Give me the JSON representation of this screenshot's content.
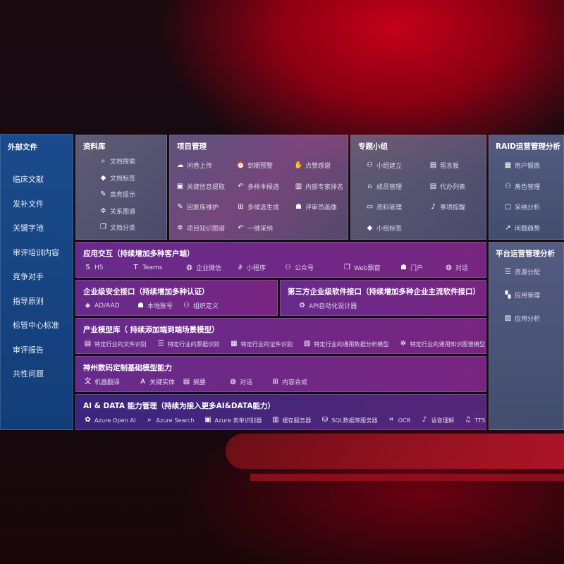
{
  "sidebar": {
    "title": "外部文件",
    "items": [
      "临床文献",
      "发补文件",
      "关键字池",
      "审评培训内容",
      "竞争对手",
      "指导原则",
      "标管中心标准",
      "审评报告",
      "共性问题"
    ]
  },
  "library": {
    "title": "资料库",
    "items": [
      {
        "icon": "doc-search",
        "label": "文档搜索"
      },
      {
        "icon": "tag",
        "label": "文档标签"
      },
      {
        "icon": "pen",
        "label": "高亮提示"
      },
      {
        "icon": "graph",
        "label": "关系图谱"
      },
      {
        "icon": "doc-stack",
        "label": "文档分类"
      }
    ]
  },
  "project": {
    "title": "项目管理",
    "items": [
      {
        "icon": "cloud-upload",
        "label": "问卷上传"
      },
      {
        "icon": "alarm",
        "label": "到期预警"
      },
      {
        "icon": "thumbs-up",
        "label": "点赞感谢"
      },
      {
        "icon": "extract",
        "label": "关键信息提取"
      },
      {
        "icon": "reply",
        "label": "多样本候选"
      },
      {
        "icon": "ranking",
        "label": "内部专家排名"
      },
      {
        "icon": "edit",
        "label": "回复库维护"
      },
      {
        "icon": "puzzle",
        "label": "多候选生成"
      },
      {
        "icon": "user",
        "label": "评审员画像"
      },
      {
        "icon": "graph",
        "label": "项目知识图谱"
      },
      {
        "icon": "reply",
        "label": "一键采纳"
      }
    ]
  },
  "group": {
    "title": "专题小组",
    "items": [
      {
        "icon": "users",
        "label": "小组建立"
      },
      {
        "icon": "bbs",
        "label": "留言板"
      },
      {
        "icon": "user-add",
        "label": "成员管理"
      },
      {
        "icon": "clipboard",
        "label": "代办列表"
      },
      {
        "icon": "folder",
        "label": "资料管理"
      },
      {
        "icon": "bell",
        "label": "事项提醒"
      },
      {
        "icon": "tag",
        "label": "小组标签"
      }
    ]
  },
  "raid": {
    "title": "RAID运营管理分析",
    "items": [
      {
        "icon": "id-card",
        "label": "用户锻炼"
      },
      {
        "icon": "users",
        "label": "角色管理"
      },
      {
        "icon": "qa",
        "label": "采纳分析"
      },
      {
        "icon": "trend",
        "label": "问题趋势"
      }
    ]
  },
  "platform": {
    "title": "平台运营管理分析",
    "items": [
      {
        "icon": "list",
        "label": "资源分配"
      },
      {
        "icon": "apps",
        "label": "应用管理"
      },
      {
        "icon": "analytics",
        "label": "应用分析"
      }
    ]
  },
  "interaction": {
    "title": "应用交互（持续增加多种客户端）",
    "items": [
      {
        "icon": "html5",
        "label": "H5"
      },
      {
        "icon": "teams",
        "label": "Teams"
      },
      {
        "icon": "wechat",
        "label": "企业微信"
      },
      {
        "icon": "mini-program",
        "label": "小程序"
      },
      {
        "icon": "official-account",
        "label": "公众号"
      },
      {
        "icon": "window",
        "label": "Web飘窗"
      },
      {
        "icon": "portal",
        "label": "门户"
      },
      {
        "icon": "chat",
        "label": "对话"
      }
    ]
  },
  "security": {
    "title": "企业级安全接口（持续增加多种认证）",
    "items": [
      {
        "icon": "ad",
        "label": "AD/AAD"
      },
      {
        "icon": "local-account",
        "label": "本地账号"
      },
      {
        "icon": "org",
        "label": "组织定义"
      }
    ]
  },
  "thirdparty": {
    "title": "第三方企业级软件接口（持续增加多种企业主流软件接口）",
    "items": [
      {
        "icon": "gear",
        "label": "API自动化设计器"
      }
    ]
  },
  "industry": {
    "title": "产业模型库（ 持续添加端到端场景模型）",
    "items": [
      {
        "icon": "doc",
        "label": "特定行业的文件识别"
      },
      {
        "icon": "receipt",
        "label": "特定行业的票据识别"
      },
      {
        "icon": "id-card",
        "label": "特定行业的证件识别"
      },
      {
        "icon": "chart",
        "label": "特定行业的通用数据分析模型"
      },
      {
        "icon": "graph",
        "label": "特定行业的通用知识图谱模型"
      }
    ]
  },
  "foundation": {
    "title": "神州数码定制基础模型能力",
    "items": [
      {
        "icon": "translate",
        "label": "机器翻译"
      },
      {
        "icon": "entity",
        "label": "关键实体"
      },
      {
        "icon": "summary",
        "label": "摘要"
      },
      {
        "icon": "chat",
        "label": "对话"
      },
      {
        "icon": "puzzle",
        "label": "内容合成"
      }
    ]
  },
  "aidata": {
    "title": "AI & DATA 能力管理（持续为接入更多AI&DATA能力）",
    "items": [
      {
        "icon": "openai",
        "label": "Azure Open AI"
      },
      {
        "icon": "search",
        "label": "Azure Search"
      },
      {
        "icon": "form",
        "label": "Azure 表单识别器"
      },
      {
        "icon": "cache",
        "label": "缓存服务器"
      },
      {
        "icon": "sql",
        "label": "SQL数据库服务器"
      },
      {
        "icon": "ocr",
        "label": "OCR"
      },
      {
        "icon": "speech",
        "label": "语音理解"
      },
      {
        "icon": "tts",
        "label": "TTS"
      }
    ]
  }
}
